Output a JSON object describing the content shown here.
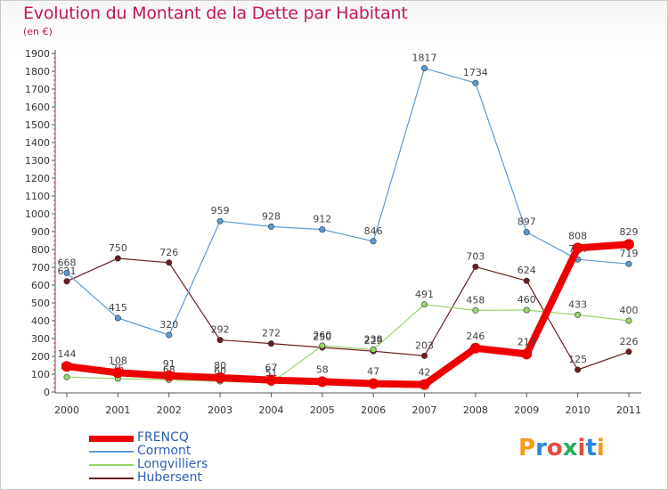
{
  "header": {
    "title": "Evolution du Montant de la Dette par Habitant",
    "subtitle": "(en €)"
  },
  "logo": {
    "text": "Proxiti",
    "colors": [
      "#f39c12",
      "#2e86de",
      "#e74c3c",
      "#27ae60",
      "#e74c3c",
      "#2e86de",
      "#f39c12"
    ]
  },
  "chart_data": {
    "type": "line",
    "title": "Evolution du Montant de la Dette par Habitant",
    "subtitle": "(en €)",
    "xlabel": "",
    "ylabel": "",
    "x": [
      "2000",
      "2001",
      "2002",
      "2003",
      "2004",
      "2005",
      "2006",
      "2007",
      "2008",
      "2009",
      "2010",
      "2011"
    ],
    "ylim": [
      0,
      1900
    ],
    "yticks": [
      "0",
      "100",
      "200",
      "300",
      "400",
      "500",
      "600",
      "700",
      "800",
      "900",
      "1000",
      "1100",
      "1200",
      "1300",
      "1400",
      "1500",
      "1600",
      "1700",
      "1800",
      "1900"
    ],
    "grid": false,
    "legend_position": "bottom-left",
    "series": [
      {
        "name": "Hubersent",
        "color": "#6b1d1d",
        "values": [
          621,
          750,
          726,
          292,
          272,
          250,
          229,
          203,
          703,
          624,
          125,
          226
        ]
      },
      {
        "name": "Longvilliers",
        "color": "#99d66b",
        "values": [
          84,
          75,
          68,
          60,
          51,
          260,
          238,
          491,
          458,
          460,
          433,
          400
        ]
      },
      {
        "name": "Cormont",
        "color": "#5b9bd5",
        "values": [
          668,
          415,
          320,
          959,
          928,
          912,
          846,
          1817,
          1734,
          897,
          744,
          719
        ]
      },
      {
        "name": "FRENCQ",
        "color": "#ee0000",
        "values": [
          144,
          108,
          91,
          80,
          67,
          58,
          47,
          42,
          246,
          213,
          808,
          829
        ]
      }
    ]
  },
  "legend": {
    "items": [
      {
        "label": "FRENCQ",
        "color": "#ee0000"
      },
      {
        "label": "Cormont",
        "color": "#5b9bd5"
      },
      {
        "label": "Longvilliers",
        "color": "#99d66b"
      },
      {
        "label": "Hubersent",
        "color": "#6b1d1d"
      }
    ]
  }
}
